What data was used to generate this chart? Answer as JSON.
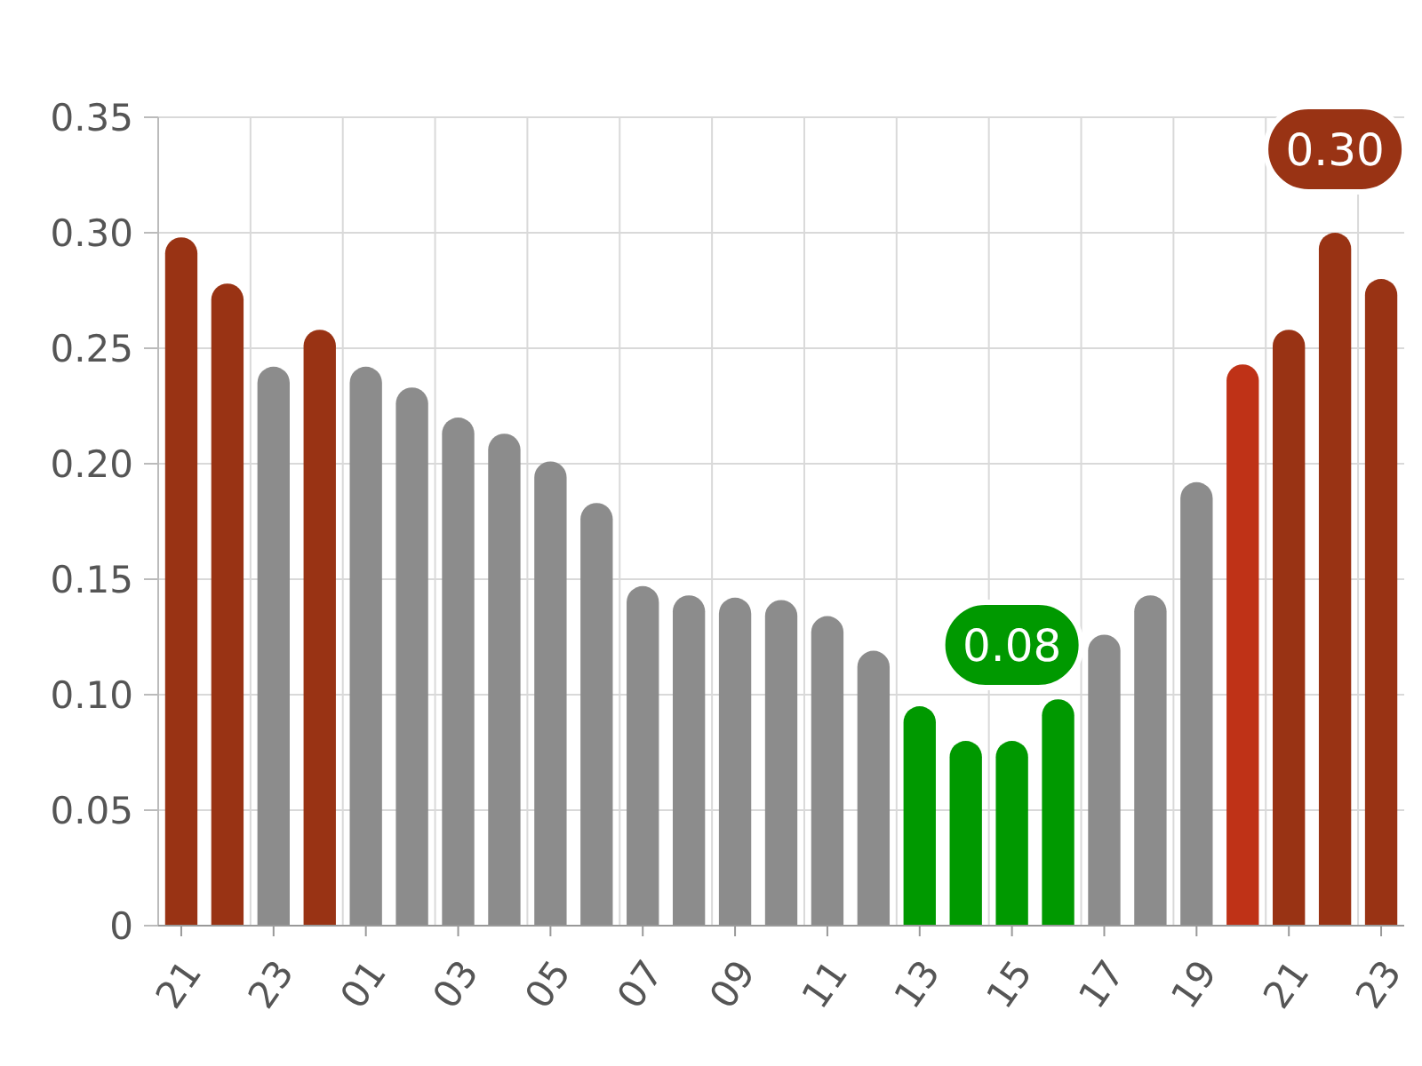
{
  "chart_data": {
    "type": "bar",
    "categories": [
      "21",
      null,
      "23",
      null,
      "01",
      null,
      "03",
      null,
      "05",
      null,
      "07",
      null,
      "09",
      null,
      "11",
      null,
      "13",
      null,
      "15",
      null,
      "17",
      null,
      "19",
      null,
      "21",
      null,
      "23"
    ],
    "values": [
      0.298,
      0.278,
      0.242,
      0.258,
      0.242,
      0.233,
      0.22,
      0.213,
      0.201,
      0.183,
      0.147,
      0.143,
      0.142,
      0.141,
      0.134,
      0.119,
      0.095,
      0.08,
      0.08,
      0.098,
      0.126,
      0.143,
      0.192,
      0.243,
      0.258,
      0.3,
      0.28
    ],
    "colors": [
      "#993314",
      "#993314",
      "#8c8c8c",
      "#993314",
      "#8c8c8c",
      "#8c8c8c",
      "#8c8c8c",
      "#8c8c8c",
      "#8c8c8c",
      "#8c8c8c",
      "#8c8c8c",
      "#8c8c8c",
      "#8c8c8c",
      "#8c8c8c",
      "#8c8c8c",
      "#8c8c8c",
      "#009900",
      "#009900",
      "#009900",
      "#009900",
      "#8c8c8c",
      "#8c8c8c",
      "#8c8c8c",
      "#bf3217",
      "#993314",
      "#993314",
      "#993314"
    ],
    "value_labels": [
      null,
      null,
      null,
      null,
      null,
      null,
      null,
      null,
      null,
      null,
      null,
      null,
      null,
      null,
      null,
      null,
      null,
      null,
      "0.08",
      null,
      null,
      null,
      null,
      null,
      null,
      "0.30",
      null
    ],
    "ylim": [
      0,
      0.35
    ],
    "yticks": [
      0,
      0.05,
      {
        "value": 0.1,
        "label": "0.10"
      },
      0.15,
      {
        "value": 0.2,
        "label": "0.20"
      },
      0.25,
      {
        "value": 0.3,
        "label": "0.30"
      },
      0.35
    ],
    "grid": true
  }
}
